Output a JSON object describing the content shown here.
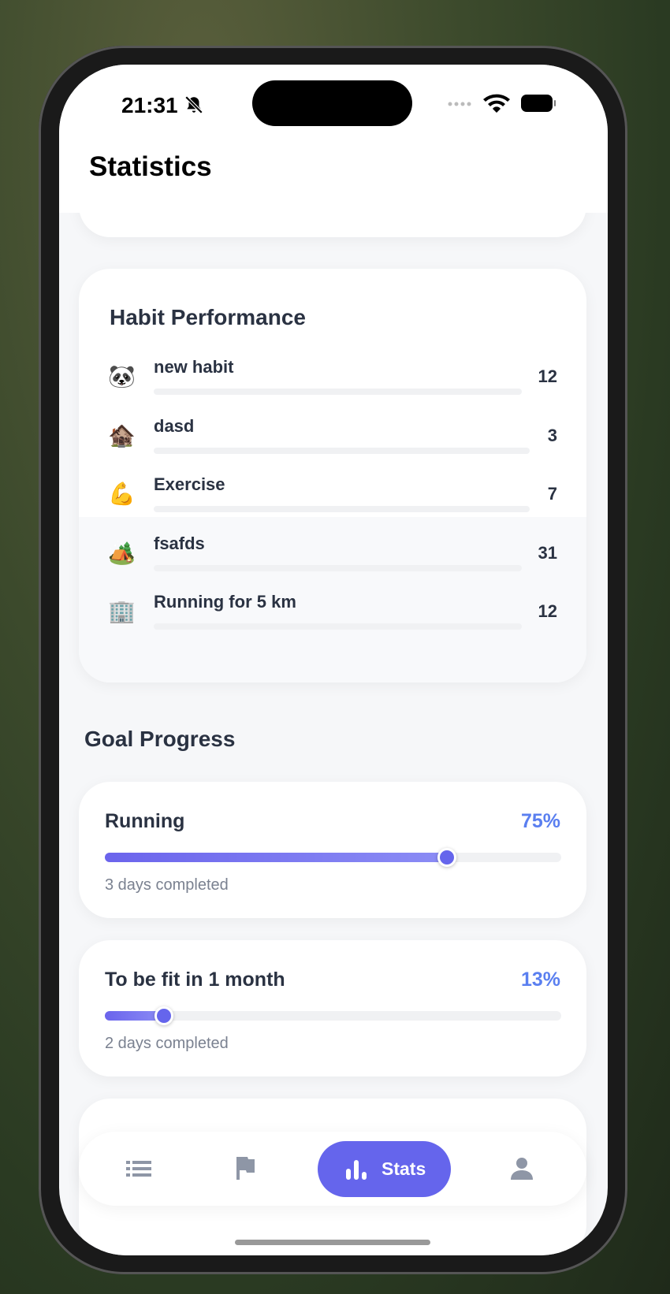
{
  "status_bar": {
    "time": "21:31"
  },
  "header": {
    "title": "Statistics"
  },
  "habit_performance": {
    "title": "Habit Performance",
    "habits": [
      {
        "icon": "🐼",
        "name": "new habit",
        "count": 12
      },
      {
        "icon": "🏚️",
        "name": "dasd",
        "count": 3
      },
      {
        "icon": "💪",
        "name": "Exercise",
        "count": 7
      },
      {
        "icon": "🏕️",
        "name": "fsafds",
        "count": 31
      },
      {
        "icon": "🏢",
        "name": "Running for 5 km",
        "count": 12
      }
    ]
  },
  "goal_progress": {
    "title": "Goal Progress",
    "goals": [
      {
        "name": "Running",
        "percent": {
          "value": 75,
          "label": "75%"
        },
        "days": "3 days completed"
      },
      {
        "name": "To be fit in 1 month",
        "percent": {
          "value": 13,
          "label": "13%"
        },
        "days": "2 days completed"
      }
    ]
  },
  "nav": {
    "active_label": "Stats"
  }
}
